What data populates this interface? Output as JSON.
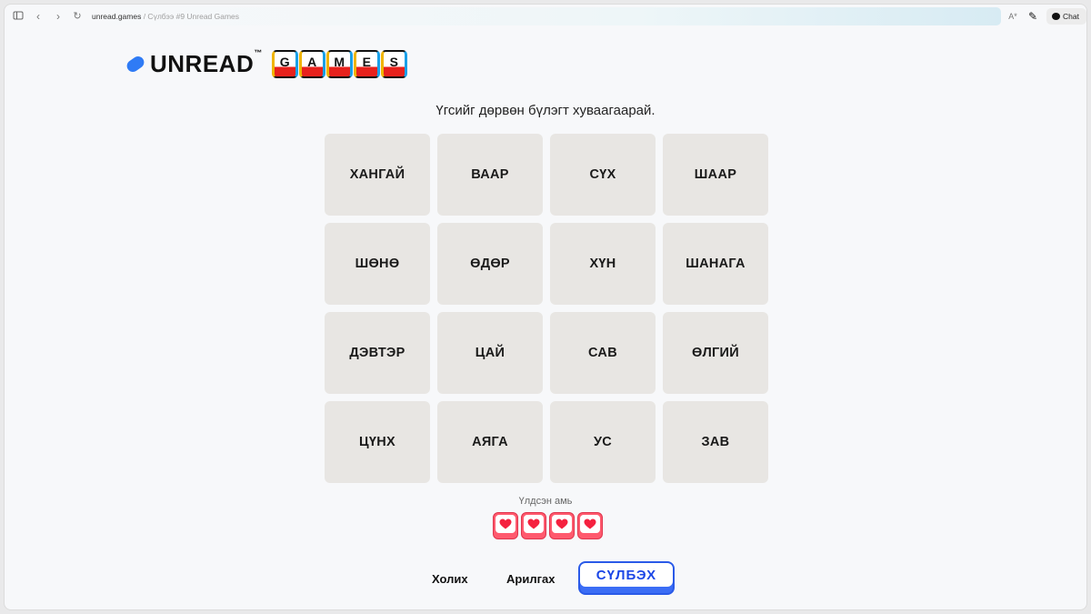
{
  "browser": {
    "domain": "unread.games",
    "page_title": " / Сүлбээ #9 Unread Games",
    "chat_label": "Chat",
    "icons": [
      "sidebar-icon",
      "back-icon",
      "forward-icon",
      "reload-icon",
      "translate-icon",
      "eyedropper-icon",
      "chat-icon"
    ]
  },
  "logo": {
    "brand": "UNREAD",
    "tm": "™",
    "games_letters": [
      "G",
      "A",
      "M",
      "E",
      "S"
    ],
    "colors": {
      "pill": "#2f7bf5",
      "key_bottom": "#e8221d",
      "key_left": "#f0b400",
      "key_right": "#1aa0e8"
    }
  },
  "instructions": "Үгсийг дөрвөн бүлэгт хуваагаарай.",
  "tiles": [
    "ХАНГАЙ",
    "ВААР",
    "СҮХ",
    "ШААР",
    "ШӨНӨ",
    "ӨДӨР",
    "ХҮН",
    "ШАНАГА",
    "ДЭВТЭР",
    "ЦАЙ",
    "САВ",
    "ӨЛГИЙ",
    "ЦҮНХ",
    "АЯГА",
    "УС",
    "ЗАВ"
  ],
  "lives": {
    "label": "Үлдсэн амь",
    "remaining": 4,
    "color": "#ff5a6e"
  },
  "actions": {
    "shuffle": "Холих",
    "clear": "Арилгах",
    "submit": "СҮЛБЭХ",
    "accent": "#3b6df5"
  }
}
